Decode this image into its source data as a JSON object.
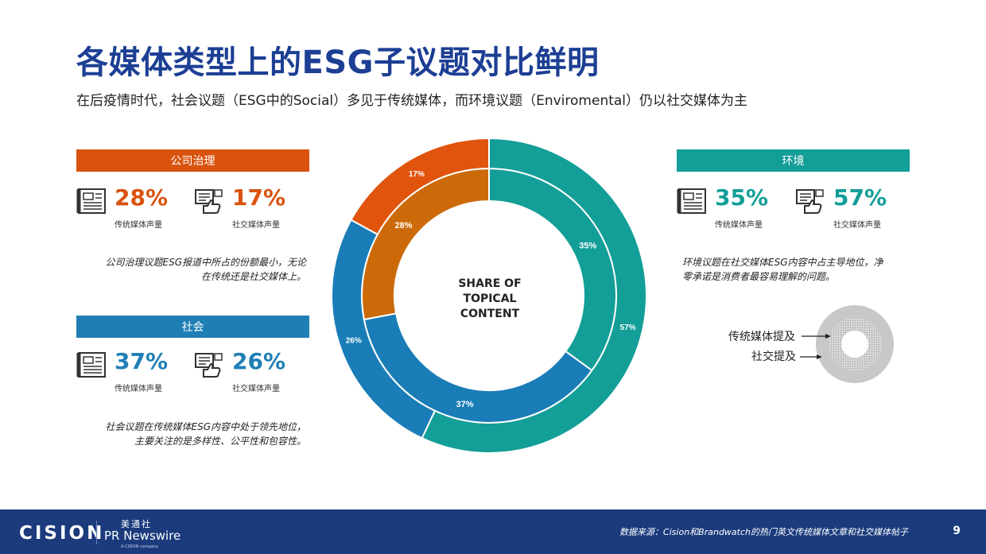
{
  "header": {
    "title": "各媒体类型上的ESG子议题对比鲜明",
    "subtitle": "在后疫情时代，社会议题（ESG中的Social）多见于传统媒体，而环境议题（Enviromental）仍以社交媒体为主"
  },
  "governance": {
    "label": "公司治理",
    "traditional_pct": "28%",
    "traditional_label": "传统媒体声量",
    "social_pct": "17%",
    "social_label": "社交媒体声量",
    "note_line1": "公司治理议题ESG报道中所占的份额最小，无论",
    "note_line2": "在传统还是社交媒体上。"
  },
  "social": {
    "label": "社会",
    "traditional_pct": "37%",
    "traditional_label": "传统媒体声量",
    "social_pct": "26%",
    "social_label": "社交媒体声量",
    "note_line1": "社会议题在传统媒体ESG内容中处于领先地位，",
    "note_line2": "主要关注的是多样性、公平性和包容性。"
  },
  "environment": {
    "label": "环境",
    "traditional_pct": "35%",
    "traditional_label": "传统媒体声量",
    "social_pct": "57%",
    "social_label": "社交媒体声量",
    "note_line1": "环境议题在社交媒体ESG内容中占主导地位，净",
    "note_line2": "零承诺是消费者最容易理解的问题。"
  },
  "legend": {
    "traditional": "传统媒体提及",
    "social": "社交提及"
  },
  "chart_data": {
    "type": "pie",
    "center_label": [
      "SHARE OF",
      "TOPICAL",
      "CONTENT"
    ],
    "rings": [
      {
        "name": "传统媒体提及",
        "position": "inner",
        "slices": [
          {
            "category": "环境",
            "value": 35,
            "label": "35%",
            "color": "#139e98"
          },
          {
            "category": "社会",
            "value": 37,
            "label": "37%",
            "color": "#1a7db8"
          },
          {
            "category": "公司治理",
            "value": 28,
            "label": "28%",
            "color": "#cc6a09"
          }
        ]
      },
      {
        "name": "社交提及",
        "position": "outer",
        "slices": [
          {
            "category": "环境",
            "value": 57,
            "label": "57%",
            "color": "#139e98"
          },
          {
            "category": "社会",
            "value": 26,
            "label": "26%",
            "color": "#1a7db8"
          },
          {
            "category": "公司治理",
            "value": 17,
            "label": "17%",
            "color": "#e0540e"
          }
        ]
      }
    ]
  },
  "footer": {
    "logo": "CISION",
    "logo_cn": "美通社",
    "logo_prn": "PR Newswire",
    "logo_small": "A CISION company",
    "source": "数据来源：Cision和Brandwatch的热门英文传统媒体文章和社交媒体帖子",
    "page": "9"
  }
}
